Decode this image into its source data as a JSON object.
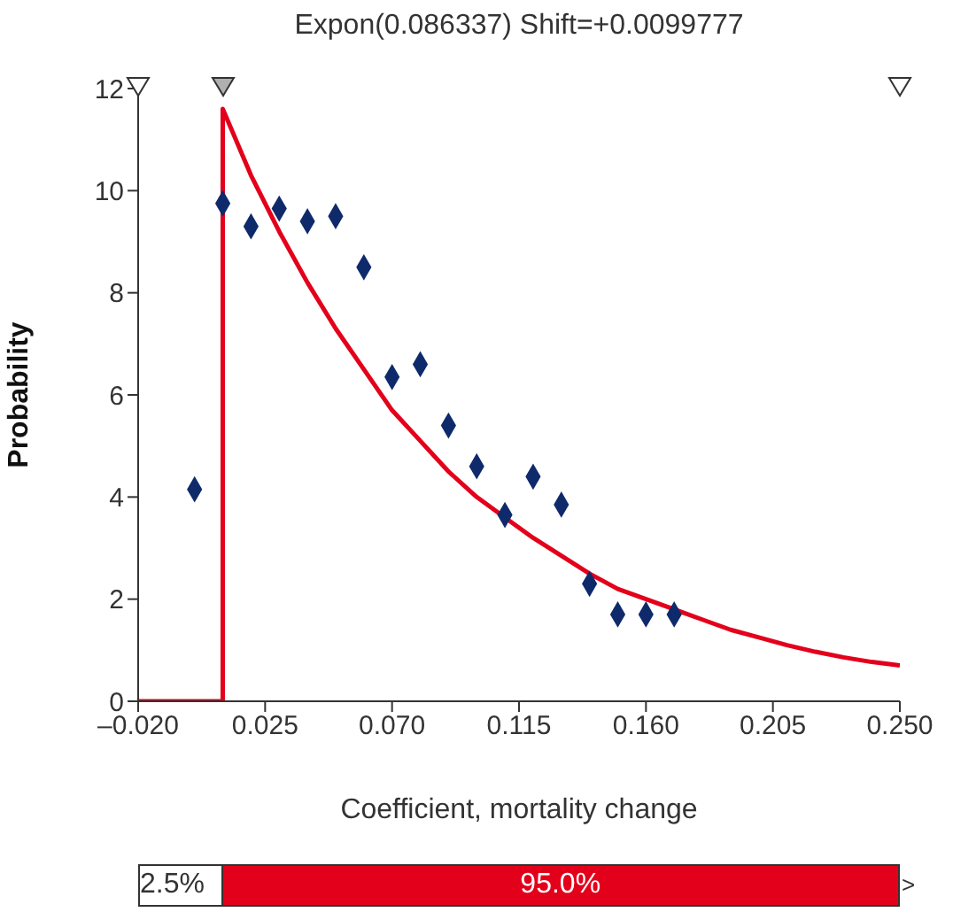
{
  "chart_data": {
    "type": "scatter",
    "title": "Expon(0.086337) Shift=+0.0099777",
    "xlabel": "Coefficient, mortality change",
    "ylabel": "Probability",
    "xlim": [
      -0.02,
      0.25
    ],
    "xticks": [
      {
        "value": -0.02,
        "label": "–0.020"
      },
      {
        "value": 0.025,
        "label": "0.025"
      },
      {
        "value": 0.07,
        "label": "0.070"
      },
      {
        "value": 0.115,
        "label": "0.115"
      },
      {
        "value": 0.16,
        "label": "0.160"
      },
      {
        "value": 0.205,
        "label": "0.205"
      },
      {
        "value": 0.25,
        "label": "0.250"
      }
    ],
    "ylim": [
      0,
      12
    ],
    "yticks": [
      0,
      2,
      4,
      6,
      8,
      10,
      12
    ],
    "grid": false,
    "legend": false,
    "series": [
      {
        "type": "scatter",
        "color": "#0f2a6b",
        "marker": "diamond",
        "x": [
          0.0,
          0.01,
          0.02,
          0.03,
          0.04,
          0.05,
          0.06,
          0.07,
          0.08,
          0.09,
          0.1,
          0.11,
          0.12,
          0.13,
          0.14,
          0.15,
          0.16,
          0.17
        ],
        "values": [
          4.15,
          9.75,
          9.3,
          9.65,
          9.4,
          9.5,
          8.5,
          6.35,
          6.6,
          5.4,
          4.6,
          3.65,
          4.4,
          3.85,
          2.3,
          1.7,
          1.7,
          1.7
        ]
      },
      {
        "type": "line",
        "color": "#e3001b",
        "marker": "none",
        "x": [
          -0.02,
          0.0099777,
          0.0099777,
          0.02,
          0.03,
          0.04,
          0.05,
          0.06,
          0.07,
          0.08,
          0.09,
          0.1,
          0.11,
          0.12,
          0.13,
          0.14,
          0.15,
          0.16,
          0.17,
          0.18,
          0.19,
          0.2,
          0.21,
          0.22,
          0.23,
          0.24,
          0.25
        ],
        "values": [
          0,
          0,
          11.6,
          10.3,
          9.2,
          8.2,
          7.3,
          6.5,
          5.7,
          5.1,
          4.5,
          4.0,
          3.6,
          3.2,
          2.85,
          2.5,
          2.2,
          2.0,
          1.8,
          1.6,
          1.4,
          1.25,
          1.1,
          0.97,
          0.86,
          0.77,
          0.7
        ]
      }
    ],
    "annotations": [
      "2.5%",
      "95.0%",
      ">"
    ]
  }
}
